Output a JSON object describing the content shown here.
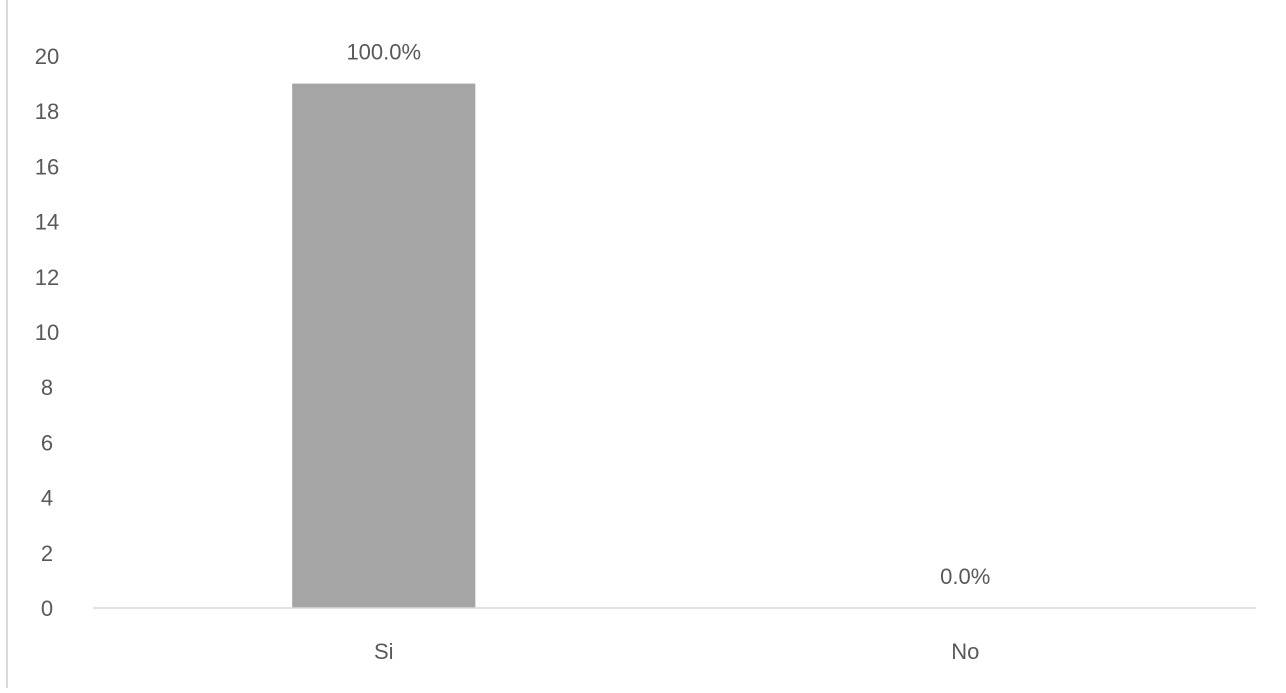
{
  "chart_data": {
    "type": "bar",
    "title": "",
    "xlabel": "",
    "ylabel": "",
    "categories": [
      "Si",
      "No"
    ],
    "values": [
      19,
      0
    ],
    "data_labels": [
      "100.0%",
      "0.0%"
    ],
    "ylim": [
      0,
      20
    ],
    "y_ticks": [
      "0",
      "2",
      "4",
      "6",
      "8",
      "10",
      "12",
      "14",
      "16",
      "18",
      "20"
    ],
    "grid": false,
    "legend": "none",
    "bar_color": "#a5a5a5",
    "axis_color": "#d9d9d9",
    "text_color": "#595959"
  }
}
